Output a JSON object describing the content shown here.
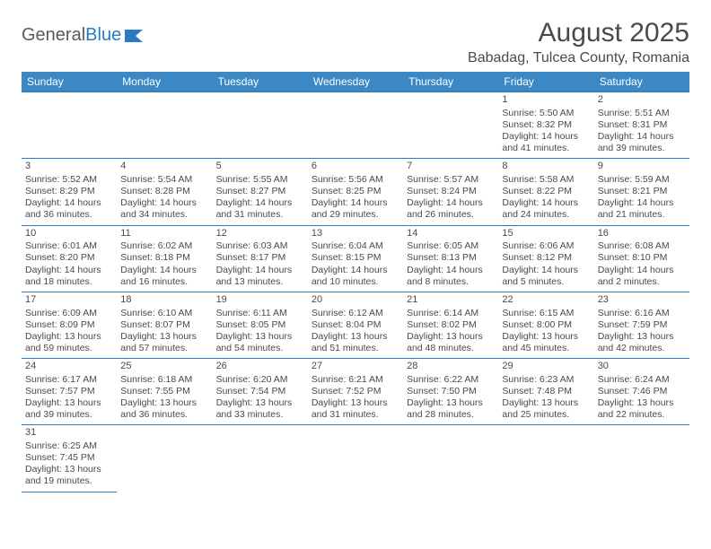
{
  "logo": {
    "text_gray": "General",
    "text_blue": "Blue"
  },
  "title": "August 2025",
  "location": "Babadag, Tulcea County, Romania",
  "colors": {
    "header_bg": "#3b88c4",
    "header_text": "#ffffff",
    "border": "#2a7bbf",
    "body_text": "#4a4a4a",
    "logo_gray": "#5a5a5a",
    "logo_blue": "#2a7bbf",
    "background": "#ffffff"
  },
  "typography": {
    "title_fontsize": 30,
    "location_fontsize": 16,
    "dayheader_fontsize": 12,
    "cell_fontsize": 10.5
  },
  "weekdays": [
    "Sunday",
    "Monday",
    "Tuesday",
    "Wednesday",
    "Thursday",
    "Friday",
    "Saturday"
  ],
  "weeks": [
    [
      null,
      null,
      null,
      null,
      null,
      {
        "day": "1",
        "sunrise": "Sunrise: 5:50 AM",
        "sunset": "Sunset: 8:32 PM",
        "daylight1": "Daylight: 14 hours",
        "daylight2": "and 41 minutes."
      },
      {
        "day": "2",
        "sunrise": "Sunrise: 5:51 AM",
        "sunset": "Sunset: 8:31 PM",
        "daylight1": "Daylight: 14 hours",
        "daylight2": "and 39 minutes."
      }
    ],
    [
      {
        "day": "3",
        "sunrise": "Sunrise: 5:52 AM",
        "sunset": "Sunset: 8:29 PM",
        "daylight1": "Daylight: 14 hours",
        "daylight2": "and 36 minutes."
      },
      {
        "day": "4",
        "sunrise": "Sunrise: 5:54 AM",
        "sunset": "Sunset: 8:28 PM",
        "daylight1": "Daylight: 14 hours",
        "daylight2": "and 34 minutes."
      },
      {
        "day": "5",
        "sunrise": "Sunrise: 5:55 AM",
        "sunset": "Sunset: 8:27 PM",
        "daylight1": "Daylight: 14 hours",
        "daylight2": "and 31 minutes."
      },
      {
        "day": "6",
        "sunrise": "Sunrise: 5:56 AM",
        "sunset": "Sunset: 8:25 PM",
        "daylight1": "Daylight: 14 hours",
        "daylight2": "and 29 minutes."
      },
      {
        "day": "7",
        "sunrise": "Sunrise: 5:57 AM",
        "sunset": "Sunset: 8:24 PM",
        "daylight1": "Daylight: 14 hours",
        "daylight2": "and 26 minutes."
      },
      {
        "day": "8",
        "sunrise": "Sunrise: 5:58 AM",
        "sunset": "Sunset: 8:22 PM",
        "daylight1": "Daylight: 14 hours",
        "daylight2": "and 24 minutes."
      },
      {
        "day": "9",
        "sunrise": "Sunrise: 5:59 AM",
        "sunset": "Sunset: 8:21 PM",
        "daylight1": "Daylight: 14 hours",
        "daylight2": "and 21 minutes."
      }
    ],
    [
      {
        "day": "10",
        "sunrise": "Sunrise: 6:01 AM",
        "sunset": "Sunset: 8:20 PM",
        "daylight1": "Daylight: 14 hours",
        "daylight2": "and 18 minutes."
      },
      {
        "day": "11",
        "sunrise": "Sunrise: 6:02 AM",
        "sunset": "Sunset: 8:18 PM",
        "daylight1": "Daylight: 14 hours",
        "daylight2": "and 16 minutes."
      },
      {
        "day": "12",
        "sunrise": "Sunrise: 6:03 AM",
        "sunset": "Sunset: 8:17 PM",
        "daylight1": "Daylight: 14 hours",
        "daylight2": "and 13 minutes."
      },
      {
        "day": "13",
        "sunrise": "Sunrise: 6:04 AM",
        "sunset": "Sunset: 8:15 PM",
        "daylight1": "Daylight: 14 hours",
        "daylight2": "and 10 minutes."
      },
      {
        "day": "14",
        "sunrise": "Sunrise: 6:05 AM",
        "sunset": "Sunset: 8:13 PM",
        "daylight1": "Daylight: 14 hours",
        "daylight2": "and 8 minutes."
      },
      {
        "day": "15",
        "sunrise": "Sunrise: 6:06 AM",
        "sunset": "Sunset: 8:12 PM",
        "daylight1": "Daylight: 14 hours",
        "daylight2": "and 5 minutes."
      },
      {
        "day": "16",
        "sunrise": "Sunrise: 6:08 AM",
        "sunset": "Sunset: 8:10 PM",
        "daylight1": "Daylight: 14 hours",
        "daylight2": "and 2 minutes."
      }
    ],
    [
      {
        "day": "17",
        "sunrise": "Sunrise: 6:09 AM",
        "sunset": "Sunset: 8:09 PM",
        "daylight1": "Daylight: 13 hours",
        "daylight2": "and 59 minutes."
      },
      {
        "day": "18",
        "sunrise": "Sunrise: 6:10 AM",
        "sunset": "Sunset: 8:07 PM",
        "daylight1": "Daylight: 13 hours",
        "daylight2": "and 57 minutes."
      },
      {
        "day": "19",
        "sunrise": "Sunrise: 6:11 AM",
        "sunset": "Sunset: 8:05 PM",
        "daylight1": "Daylight: 13 hours",
        "daylight2": "and 54 minutes."
      },
      {
        "day": "20",
        "sunrise": "Sunrise: 6:12 AM",
        "sunset": "Sunset: 8:04 PM",
        "daylight1": "Daylight: 13 hours",
        "daylight2": "and 51 minutes."
      },
      {
        "day": "21",
        "sunrise": "Sunrise: 6:14 AM",
        "sunset": "Sunset: 8:02 PM",
        "daylight1": "Daylight: 13 hours",
        "daylight2": "and 48 minutes."
      },
      {
        "day": "22",
        "sunrise": "Sunrise: 6:15 AM",
        "sunset": "Sunset: 8:00 PM",
        "daylight1": "Daylight: 13 hours",
        "daylight2": "and 45 minutes."
      },
      {
        "day": "23",
        "sunrise": "Sunrise: 6:16 AM",
        "sunset": "Sunset: 7:59 PM",
        "daylight1": "Daylight: 13 hours",
        "daylight2": "and 42 minutes."
      }
    ],
    [
      {
        "day": "24",
        "sunrise": "Sunrise: 6:17 AM",
        "sunset": "Sunset: 7:57 PM",
        "daylight1": "Daylight: 13 hours",
        "daylight2": "and 39 minutes."
      },
      {
        "day": "25",
        "sunrise": "Sunrise: 6:18 AM",
        "sunset": "Sunset: 7:55 PM",
        "daylight1": "Daylight: 13 hours",
        "daylight2": "and 36 minutes."
      },
      {
        "day": "26",
        "sunrise": "Sunrise: 6:20 AM",
        "sunset": "Sunset: 7:54 PM",
        "daylight1": "Daylight: 13 hours",
        "daylight2": "and 33 minutes."
      },
      {
        "day": "27",
        "sunrise": "Sunrise: 6:21 AM",
        "sunset": "Sunset: 7:52 PM",
        "daylight1": "Daylight: 13 hours",
        "daylight2": "and 31 minutes."
      },
      {
        "day": "28",
        "sunrise": "Sunrise: 6:22 AM",
        "sunset": "Sunset: 7:50 PM",
        "daylight1": "Daylight: 13 hours",
        "daylight2": "and 28 minutes."
      },
      {
        "day": "29",
        "sunrise": "Sunrise: 6:23 AM",
        "sunset": "Sunset: 7:48 PM",
        "daylight1": "Daylight: 13 hours",
        "daylight2": "and 25 minutes."
      },
      {
        "day": "30",
        "sunrise": "Sunrise: 6:24 AM",
        "sunset": "Sunset: 7:46 PM",
        "daylight1": "Daylight: 13 hours",
        "daylight2": "and 22 minutes."
      }
    ],
    [
      {
        "day": "31",
        "sunrise": "Sunrise: 6:25 AM",
        "sunset": "Sunset: 7:45 PM",
        "daylight1": "Daylight: 13 hours",
        "daylight2": "and 19 minutes."
      },
      null,
      null,
      null,
      null,
      null,
      null
    ]
  ]
}
